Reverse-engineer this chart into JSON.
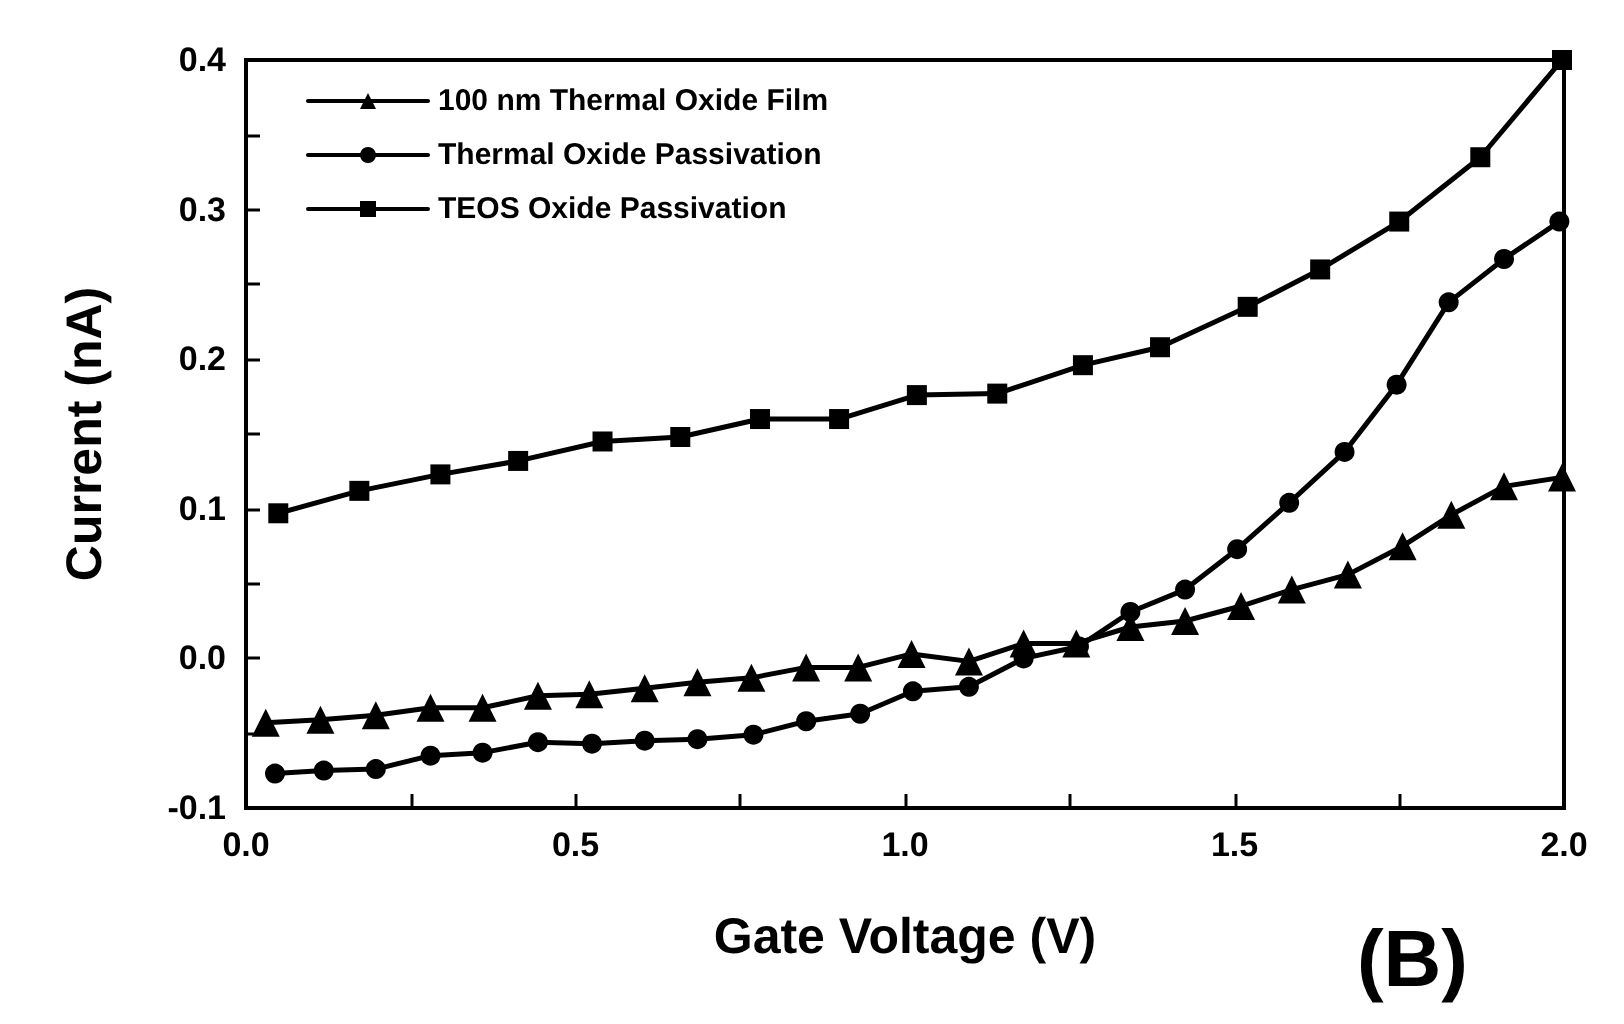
{
  "chart_data": {
    "type": "line",
    "xlabel": "Gate Voltage (V)",
    "ylabel": "Current (nA)",
    "annotations": [
      "(B)"
    ],
    "xlim": [
      0,
      2
    ],
    "ylim": [
      -0.1,
      0.4
    ],
    "xticks": [
      {
        "value": 0,
        "label": "0.0"
      },
      {
        "value": 0.25,
        "label": null
      },
      0.5,
      {
        "value": 0.75,
        "label": null
      },
      {
        "value": 1,
        "label": "1.0"
      },
      {
        "value": 1.25,
        "label": null
      },
      1.5,
      {
        "value": 1.75,
        "label": null
      },
      {
        "value": 2,
        "label": "2.0"
      }
    ],
    "yticks": [
      -0.1,
      {
        "value": -0.05,
        "label": null
      },
      {
        "value": 0,
        "label": "0.0"
      },
      {
        "value": 0.05,
        "label": null
      },
      0.1,
      {
        "value": 0.15,
        "label": null
      },
      0.2,
      {
        "value": 0.25,
        "label": null
      },
      0.3,
      {
        "value": 0.35,
        "label": null
      },
      0.4
    ],
    "grid": false,
    "legend": "top left",
    "series": [
      {
        "name": "100 nm Thermal Oxide Film",
        "color": "#000000",
        "marker": "triangle",
        "x": [
          0.03,
          0.113,
          0.197,
          0.28,
          0.359,
          0.443,
          0.521,
          0.605,
          0.685,
          0.767,
          0.85,
          0.929,
          1.01,
          1.097,
          1.18,
          1.26,
          1.342,
          1.425,
          1.51,
          1.587,
          1.672,
          1.755,
          1.829,
          1.909,
          1.997
        ],
        "values": [
          -0.043,
          -0.041,
          -0.038,
          -0.033,
          -0.033,
          -0.025,
          -0.024,
          -0.02,
          -0.016,
          -0.013,
          -0.006,
          -0.006,
          0.003,
          -0.002,
          0.01,
          0.01,
          0.021,
          0.025,
          0.035,
          0.046,
          0.056,
          0.075,
          0.096,
          0.115,
          0.121
        ]
      },
      {
        "name": "Thermal Oxide Passivation",
        "color": "#000000",
        "marker": "circle",
        "x": [
          0.044,
          0.118,
          0.197,
          0.28,
          0.359,
          0.443,
          0.525,
          0.605,
          0.685,
          0.77,
          0.85,
          0.932,
          1.012,
          1.097,
          1.18,
          1.264,
          1.342,
          1.425,
          1.504,
          1.583,
          1.667,
          1.746,
          1.825,
          1.909,
          1.993
        ],
        "values": [
          -0.077,
          -0.075,
          -0.074,
          -0.065,
          -0.063,
          -0.056,
          -0.057,
          -0.055,
          -0.054,
          -0.051,
          -0.042,
          -0.037,
          -0.022,
          -0.019,
          0.0,
          0.008,
          0.031,
          0.046,
          0.073,
          0.104,
          0.138,
          0.183,
          0.238,
          0.267,
          0.292
        ]
      },
      {
        "name": "TEOS Oxide Passivation",
        "color": "#000000",
        "marker": "square",
        "x": [
          0.049,
          0.172,
          0.295,
          0.413,
          0.541,
          0.659,
          0.78,
          0.9,
          1.018,
          1.14,
          1.27,
          1.387,
          1.52,
          1.63,
          1.75,
          1.873,
          1.997
        ],
        "values": [
          0.097,
          0.112,
          0.123,
          0.132,
          0.145,
          0.148,
          0.16,
          0.16,
          0.176,
          0.177,
          0.196,
          0.208,
          0.235,
          0.26,
          0.292,
          0.335,
          0.4
        ]
      }
    ]
  }
}
